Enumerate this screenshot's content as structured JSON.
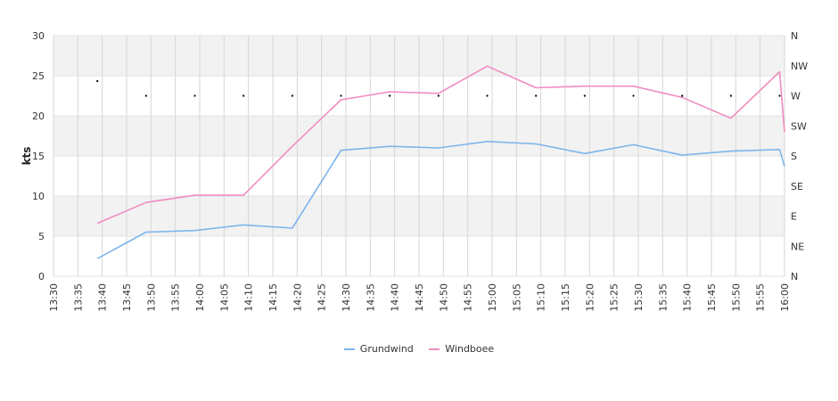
{
  "chart_data": {
    "type": "line",
    "ylabel": "kts",
    "ylim": [
      0,
      30
    ],
    "yticks": [
      "0",
      "5",
      "10",
      "15",
      "20",
      "25",
      "30"
    ],
    "y2ticks": [
      "N",
      "NE",
      "E",
      "SE",
      "S",
      "SW",
      "W",
      "NW",
      "N"
    ],
    "xticks": [
      "13:30",
      "13:35",
      "13:40",
      "13:45",
      "13:50",
      "13:55",
      "14:00",
      "14:05",
      "14:10",
      "14:15",
      "14:20",
      "14:25",
      "14:30",
      "14:35",
      "14:40",
      "14:45",
      "14:50",
      "14:55",
      "15:00",
      "15:05",
      "15:10",
      "15:15",
      "15:20",
      "15:25",
      "15:30",
      "15:35",
      "15:40",
      "15:45",
      "15:50",
      "15:55",
      "16:00"
    ],
    "grid": true,
    "legend_position": "bottom",
    "series": [
      {
        "name": "Grundwind",
        "color": "#7cb5ec",
        "x": [
          "13:39",
          "13:49",
          "13:59",
          "14:09",
          "14:19",
          "14:29",
          "14:39",
          "14:49",
          "14:59",
          "15:09",
          "15:19",
          "15:29",
          "15:39",
          "15:49",
          "15:59",
          "16:00"
        ],
        "values": [
          2.2,
          5.5,
          5.7,
          6.4,
          6.0,
          15.7,
          16.2,
          16.0,
          16.8,
          16.5,
          15.3,
          16.4,
          15.1,
          15.6,
          15.8,
          13.7
        ]
      },
      {
        "name": "Windboee",
        "color": "#f08cc0",
        "x": [
          "13:39",
          "13:49",
          "13:59",
          "14:09",
          "14:19",
          "14:29",
          "14:39",
          "14:49",
          "14:59",
          "15:09",
          "15:19",
          "15:29",
          "15:39",
          "15:49",
          "15:59",
          "16:00"
        ],
        "values": [
          6.6,
          9.2,
          10.1,
          10.1,
          16.2,
          22.0,
          23.0,
          22.8,
          26.2,
          23.5,
          23.7,
          23.7,
          22.3,
          19.7,
          25.5,
          18.0
        ]
      }
    ],
    "direction_markers": {
      "x": [
        "13:39",
        "13:49",
        "13:59",
        "14:09",
        "14:19",
        "14:29",
        "14:39",
        "14:49",
        "14:59",
        "15:09",
        "15:19",
        "15:29",
        "15:39",
        "15:49",
        "15:59"
      ],
      "direction_deg": [
        292,
        270,
        270,
        270,
        270,
        270,
        270,
        270,
        270,
        270,
        270,
        270,
        270,
        270,
        270
      ]
    }
  }
}
